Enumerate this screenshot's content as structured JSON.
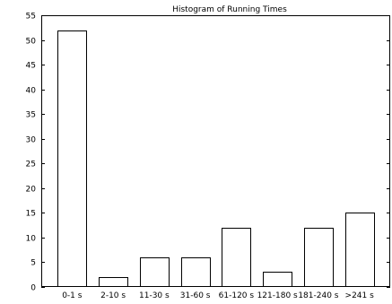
{
  "chart_data": {
    "type": "bar",
    "title": "Histogram of Running Times",
    "xlabel": "",
    "ylabel": "",
    "categories": [
      "0-1 s",
      "2-10 s",
      "11-30 s",
      "31-60 s",
      "61-120 s",
      "121-180 s",
      "181-240 s",
      ">241 s"
    ],
    "values": [
      52,
      2,
      6,
      6,
      12,
      3,
      12,
      15
    ],
    "ylim": [
      0,
      55
    ],
    "yticks": [
      0,
      5,
      10,
      15,
      20,
      25,
      30,
      35,
      40,
      45,
      50,
      55
    ],
    "grid": false,
    "legend": "none",
    "colors": {
      "bar_fill": "#ffffff",
      "bar_stroke": "#000000",
      "axis": "#000000"
    }
  }
}
